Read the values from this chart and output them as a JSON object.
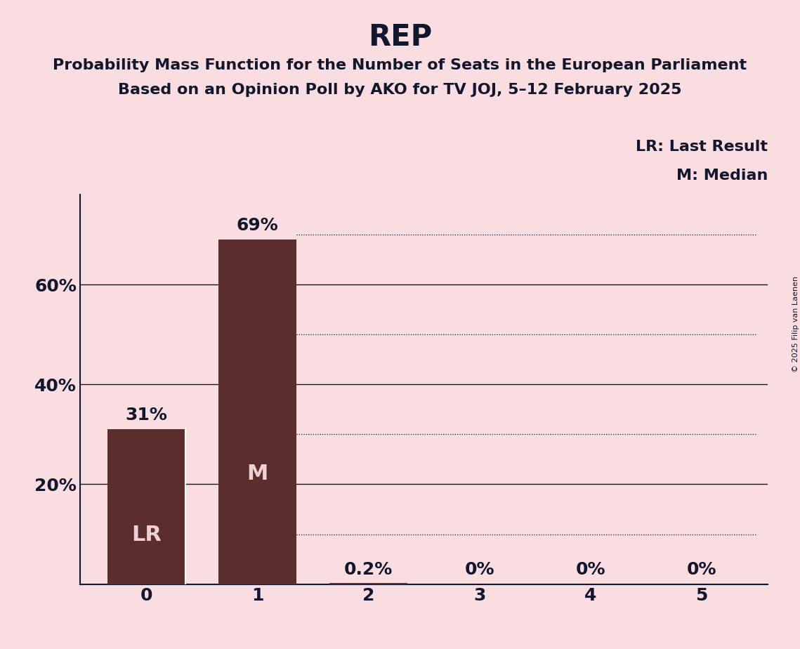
{
  "title": "REP",
  "subtitle_line1": "Probability Mass Function for the Number of Seats in the European Parliament",
  "subtitle_line2": "Based on an Opinion Poll by AKO for TV JOJ, 5–12 February 2025",
  "copyright": "© 2025 Filip van Laenen",
  "categories": [
    0,
    1,
    2,
    3,
    4,
    5
  ],
  "values": [
    0.31,
    0.69,
    0.002,
    0.0,
    0.0,
    0.0
  ],
  "bar_labels": [
    "31%",
    "69%",
    "0.2%",
    "0%",
    "0%",
    "0%"
  ],
  "bar_annotations": [
    "LR",
    "M",
    "",
    "",
    "",
    ""
  ],
  "bar_color": "#5c2d2d",
  "background_color": "#f9dde0",
  "title_color": "#12172e",
  "bar_text_color": "#f0d0d5",
  "above_bar_color": "#12172e",
  "ytick_labels": [
    "20%",
    "40%",
    "60%"
  ],
  "ytick_values": [
    0.2,
    0.4,
    0.6
  ],
  "solid_gridlines": [
    0.2,
    0.4,
    0.6
  ],
  "dotted_gridlines": [
    0.1,
    0.3,
    0.5,
    0.7
  ],
  "ylim": [
    0,
    0.78
  ],
  "legend_lr": "LR: Last Result",
  "legend_m": "M: Median",
  "title_fontsize": 30,
  "subtitle_fontsize": 16,
  "bar_label_fontsize": 18,
  "bar_annot_fontsize": 22,
  "tick_fontsize": 18,
  "legend_fontsize": 16,
  "copyright_fontsize": 8
}
